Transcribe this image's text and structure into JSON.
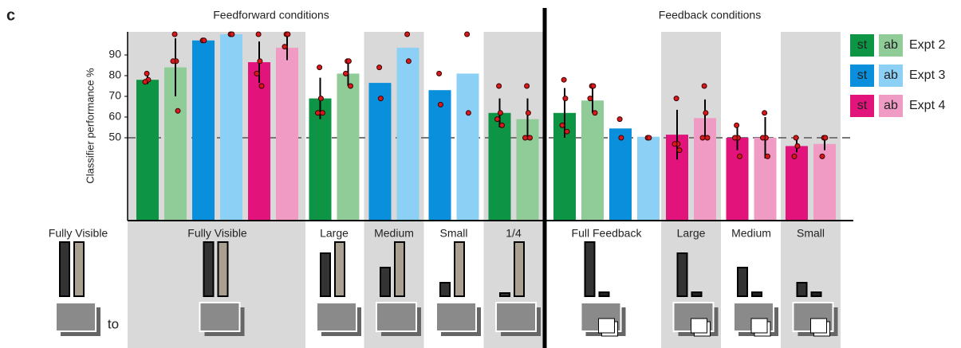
{
  "chart_data": {
    "type": "bar",
    "panel_label": "c",
    "section_titles": [
      "Feedforward conditions",
      "Feedback conditions"
    ],
    "y_label": "Classifier performance %",
    "ylim": [
      10,
      100
    ],
    "yticks": [
      50,
      60,
      70,
      80,
      90
    ],
    "chance_line": 50,
    "reference_label": "Fully Visible",
    "to_label": "to",
    "legend": [
      {
        "name": "Expt 2",
        "st": "st",
        "ab": "ab",
        "colors": [
          "#0d9444",
          "#8fcc97"
        ]
      },
      {
        "name": "Expt 3",
        "st": "st",
        "ab": "ab",
        "colors": [
          "#0a8fdc",
          "#8dd0f5"
        ]
      },
      {
        "name": "Expt 4",
        "st": "st",
        "ab": "ab",
        "colors": [
          "#e2137a",
          "#f09bc4"
        ]
      }
    ],
    "groups": [
      {
        "label": "Fully Visible",
        "shaded": true,
        "bars": [
          {
            "color": "#0d9444",
            "value": 78,
            "error": 2,
            "points": [
              81,
              78,
              77
            ]
          },
          {
            "color": "#8fcc97",
            "value": 84,
            "error": 14,
            "points": [
              100,
              87,
              87,
              63
            ]
          },
          {
            "color": "#0a8fdc",
            "value": 97,
            "points": [
              97,
              97
            ]
          },
          {
            "color": "#8dd0f5",
            "value": 100,
            "points": [
              100,
              100
            ]
          },
          {
            "color": "#e2137a",
            "value": 86.5,
            "error": 10,
            "points": [
              100,
              87,
              81,
              75
            ]
          },
          {
            "color": "#f09bc4",
            "value": 93.5,
            "error": 6,
            "points": [
              100,
              100,
              94
            ]
          }
        ]
      },
      {
        "label": "Large",
        "shaded": false,
        "bars": [
          {
            "color": "#0d9444",
            "value": 69,
            "error": 10,
            "points": [
              84,
              69,
              62,
              62
            ]
          },
          {
            "color": "#8fcc97",
            "value": 81,
            "error": 6,
            "points": [
              87,
              87,
              81,
              75
            ]
          }
        ]
      },
      {
        "label": "Medium",
        "shaded": true,
        "bars": [
          {
            "color": "#0a8fdc",
            "value": 76.5,
            "points": [
              84,
              69
            ]
          },
          {
            "color": "#8dd0f5",
            "value": 93.5,
            "points": [
              100,
              87
            ]
          }
        ]
      },
      {
        "label": "Small",
        "shaded": false,
        "bars": [
          {
            "color": "#0a8fdc",
            "value": 73,
            "points": [
              81,
              66
            ]
          },
          {
            "color": "#8dd0f5",
            "value": 81,
            "points": [
              100,
              62
            ]
          }
        ]
      },
      {
        "label": "1/4",
        "shaded": true,
        "bars": [
          {
            "color": "#0d9444",
            "value": 62,
            "error": 7,
            "points": [
              75,
              62,
              59,
              56
            ]
          },
          {
            "color": "#8fcc97",
            "value": 59,
            "error": 10,
            "points": [
              75,
              62,
              50,
              50
            ]
          }
        ]
      },
      {
        "label": "Full Feedback",
        "shaded": false,
        "bars": [
          {
            "color": "#0d9444",
            "value": 62,
            "error": 12,
            "points": [
              78,
              69,
              56,
              53
            ]
          },
          {
            "color": "#8fcc97",
            "value": 68,
            "error": 6,
            "points": [
              75,
              75,
              69,
              62
            ]
          },
          {
            "color": "#0a8fdc",
            "value": 54.5,
            "points": [
              59,
              50
            ]
          },
          {
            "color": "#8dd0f5",
            "value": 50.5,
            "points": [
              50,
              50
            ]
          }
        ]
      },
      {
        "label": "Large",
        "shaded": true,
        "bars": [
          {
            "color": "#e2137a",
            "value": 51.5,
            "error": 12,
            "points": [
              69,
              47,
              47,
              44
            ]
          },
          {
            "color": "#f09bc4",
            "value": 59.5,
            "error": 9,
            "points": [
              75,
              62,
              50,
              50
            ]
          }
        ]
      },
      {
        "label": "Medium",
        "shaded": false,
        "bars": [
          {
            "color": "#e2137a",
            "value": 50,
            "error": 6,
            "points": [
              56,
              50,
              50,
              41
            ]
          },
          {
            "color": "#f09bc4",
            "value": 50,
            "error": 10,
            "points": [
              62,
              50,
              50,
              41
            ]
          }
        ]
      },
      {
        "label": "Small",
        "shaded": true,
        "bars": [
          {
            "color": "#e2137a",
            "value": 46,
            "error": 3,
            "points": [
              50,
              46,
              41
            ]
          },
          {
            "color": "#f09bc4",
            "value": 47,
            "error": 3,
            "points": [
              50,
              50,
              41
            ]
          }
        ]
      }
    ]
  }
}
